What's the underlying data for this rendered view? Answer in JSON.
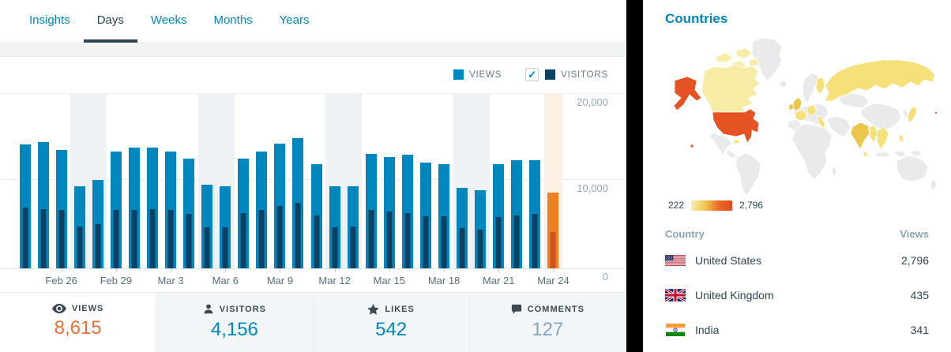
{
  "theme": {
    "css_vars": {
      "blue": "#0087be",
      "dark": "#2e4453",
      "orange": "#ea6f38",
      "muted": "#87a6bc",
      "views": "#0087be",
      "visitors": "#0d4164",
      "today": "#ed8021",
      "today-dark": "#d0521f",
      "grayband": "#eef2f4",
      "todayband": "#fbf0e3",
      "map-none": "#e8eaeb",
      "map-pale": "#f7eca6",
      "map-light": "#f5e07a",
      "map-warm": "#ecc64c",
      "map-hot": "#e55322"
    }
  },
  "tabs": {
    "items": [
      {
        "label": "Insights",
        "active": false
      },
      {
        "label": "Days",
        "active": true
      },
      {
        "label": "Weeks",
        "active": false
      },
      {
        "label": "Months",
        "active": false
      },
      {
        "label": "Years",
        "active": false
      }
    ]
  },
  "chart": {
    "legend": {
      "views_label": "VIEWS",
      "visitors_label": "VISITORS",
      "visitors_checkbox_checked": true,
      "checkmark": "✓"
    },
    "y_ticks": [
      "20,000",
      "10,000",
      "0"
    ]
  },
  "chart_data": {
    "type": "bar",
    "title": "Views and Visitors by day",
    "categories": [
      "Feb 24",
      "Feb 25",
      "Feb 26",
      "Feb 27",
      "Feb 28",
      "Feb 29",
      "Mar 1",
      "Mar 2",
      "Mar 3",
      "Mar 4",
      "Mar 5",
      "Mar 6",
      "Mar 7",
      "Mar 8",
      "Mar 9",
      "Mar 10",
      "Mar 11",
      "Mar 12",
      "Mar 13",
      "Mar 14",
      "Mar 15",
      "Mar 16",
      "Mar 17",
      "Mar 18",
      "Mar 19",
      "Mar 20",
      "Mar 21",
      "Mar 22",
      "Mar 23",
      "Mar 24"
    ],
    "series": [
      {
        "name": "Views",
        "values": [
          14100,
          14450,
          13500,
          9400,
          10100,
          13300,
          13800,
          13800,
          13300,
          12500,
          9550,
          9400,
          12500,
          13350,
          14250,
          14850,
          11850,
          9400,
          9400,
          13050,
          12700,
          13000,
          12050,
          11900,
          9200,
          8950,
          11900,
          12350,
          12350,
          8615
        ]
      },
      {
        "name": "Visitors",
        "values": [
          6900,
          6800,
          6700,
          4800,
          5000,
          6650,
          6700,
          6750,
          6650,
          6250,
          4650,
          4650,
          6350,
          6700,
          7100,
          7450,
          6000,
          4650,
          4800,
          6700,
          6500,
          6350,
          5950,
          5950,
          4550,
          4450,
          5850,
          6050,
          6200,
          4156
        ]
      }
    ],
    "x_ticks": [
      {
        "index": 2,
        "label": "Feb 26"
      },
      {
        "index": 5,
        "label": "Feb 29"
      },
      {
        "index": 8,
        "label": "Mar 3"
      },
      {
        "index": 11,
        "label": "Mar 6"
      },
      {
        "index": 14,
        "label": "Mar 9"
      },
      {
        "index": 17,
        "label": "Mar 12"
      },
      {
        "index": 20,
        "label": "Mar 15"
      },
      {
        "index": 23,
        "label": "Mar 18"
      },
      {
        "index": 26,
        "label": "Mar 21"
      },
      {
        "index": 29,
        "label": "Mar 24"
      }
    ],
    "weekend_indices": [
      3,
      4,
      10,
      11,
      17,
      18,
      24,
      25
    ],
    "today_index": 29,
    "ylim": [
      0,
      20000
    ],
    "ylabel": "",
    "xlabel": "",
    "legend_position": "top-right",
    "grid": true
  },
  "stats": {
    "items": [
      {
        "icon": "eye-icon",
        "label": "VIEWS",
        "value": "8,615",
        "selected": true
      },
      {
        "icon": "person-icon",
        "label": "VISITORS",
        "value": "4,156",
        "selected": false
      },
      {
        "icon": "star-icon",
        "label": "LIKES",
        "value": "542",
        "selected": false
      },
      {
        "icon": "comment-icon",
        "label": "COMMENTS",
        "value": "127",
        "selected": false
      }
    ]
  },
  "countries": {
    "title": "Countries",
    "map_legend": {
      "min": "222",
      "max": "2,796"
    },
    "table": {
      "headers": [
        "Country",
        "Views"
      ],
      "rows": [
        {
          "flag": "us-flag-icon",
          "name": "United States",
          "views": "2,796"
        },
        {
          "flag": "uk-flag-icon",
          "name": "United Kingdom",
          "views": "435"
        },
        {
          "flag": "in-flag-icon",
          "name": "India",
          "views": "341"
        }
      ]
    }
  }
}
